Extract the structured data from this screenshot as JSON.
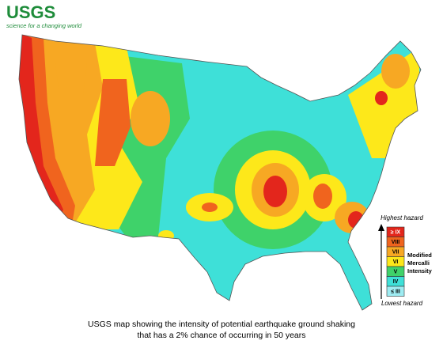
{
  "logo": {
    "title": "USGS",
    "tagline": "science for a changing world"
  },
  "legend": {
    "top_label": "Highest hazard",
    "bottom_label": "Lowest hazard",
    "scale_name": [
      "Modified",
      "Mercalli",
      "Intensity"
    ],
    "levels": [
      {
        "label": "≥ IX",
        "color": "#e3261c"
      },
      {
        "label": "VIII",
        "color": "#f0641e"
      },
      {
        "label": "VII",
        "color": "#f7a823"
      },
      {
        "label": "VI",
        "color": "#fde81a"
      },
      {
        "label": "V",
        "color": "#3fd26a"
      },
      {
        "label": "IV",
        "color": "#3ee0d8"
      },
      {
        "label": "≤ III",
        "color": "#9eecf2"
      }
    ]
  },
  "caption": [
    "USGS map showing the intensity of potential earthquake ground shaking",
    "that has a 2% chance of occurring in 50 years"
  ]
}
